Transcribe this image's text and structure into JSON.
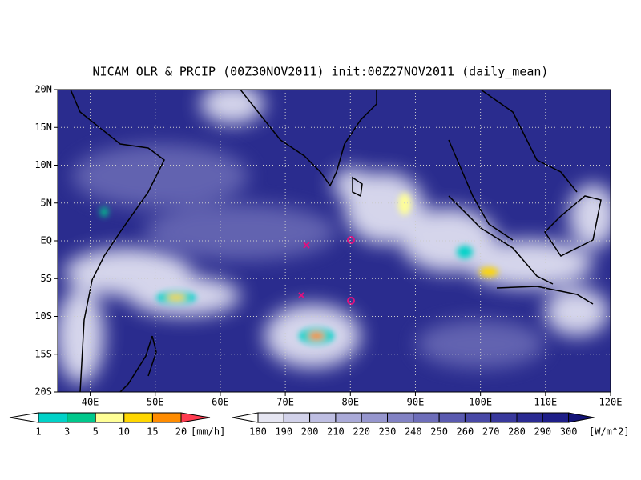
{
  "title": "NICAM OLR & PRCIP (00Z30NOV2011) init:00Z27NOV2011 (daily_mean)",
  "xlim": [
    35,
    120
  ],
  "ylim": [
    -20,
    20
  ],
  "xticks": [
    {
      "value": 40,
      "label": "40E"
    },
    {
      "value": 50,
      "label": "50E"
    },
    {
      "value": 60,
      "label": "60E"
    },
    {
      "value": 70,
      "label": "70E"
    },
    {
      "value": 80,
      "label": "80E"
    },
    {
      "value": 90,
      "label": "90E"
    },
    {
      "value": 100,
      "label": "100E"
    },
    {
      "value": 110,
      "label": "110E"
    },
    {
      "value": 120,
      "label": "120E"
    }
  ],
  "yticks": [
    {
      "value": 20,
      "label": "20N"
    },
    {
      "value": 15,
      "label": "15N"
    },
    {
      "value": 10,
      "label": "10N"
    },
    {
      "value": 5,
      "label": "5N"
    },
    {
      "value": 0,
      "label": "EQ"
    },
    {
      "value": -5,
      "label": "5S"
    },
    {
      "value": -10,
      "label": "10S"
    },
    {
      "value": -15,
      "label": "15S"
    },
    {
      "value": -20,
      "label": "20S"
    }
  ],
  "precip_legend": {
    "ticks": [
      1,
      3,
      5,
      10,
      15,
      20
    ],
    "unit": "[mm/h]",
    "colors": [
      "#ffffff",
      "#00d2c8",
      "#00c88c",
      "#ffff96",
      "#ffd700",
      "#ff8c00",
      "#ff3c50"
    ]
  },
  "olr_legend": {
    "ticks": [
      180,
      190,
      200,
      210,
      220,
      230,
      240,
      250,
      260,
      270,
      280,
      290,
      300
    ],
    "unit": "[W/m^2]",
    "colors": [
      "#ffffff",
      "#e6e6f2",
      "#d2d2ea",
      "#bebee2",
      "#aaaad8",
      "#9696ce",
      "#8282c4",
      "#6e6eba",
      "#5a5ab0",
      "#4848a6",
      "#38389c",
      "#2a2a92",
      "#1e1e88",
      "#141478"
    ]
  }
}
